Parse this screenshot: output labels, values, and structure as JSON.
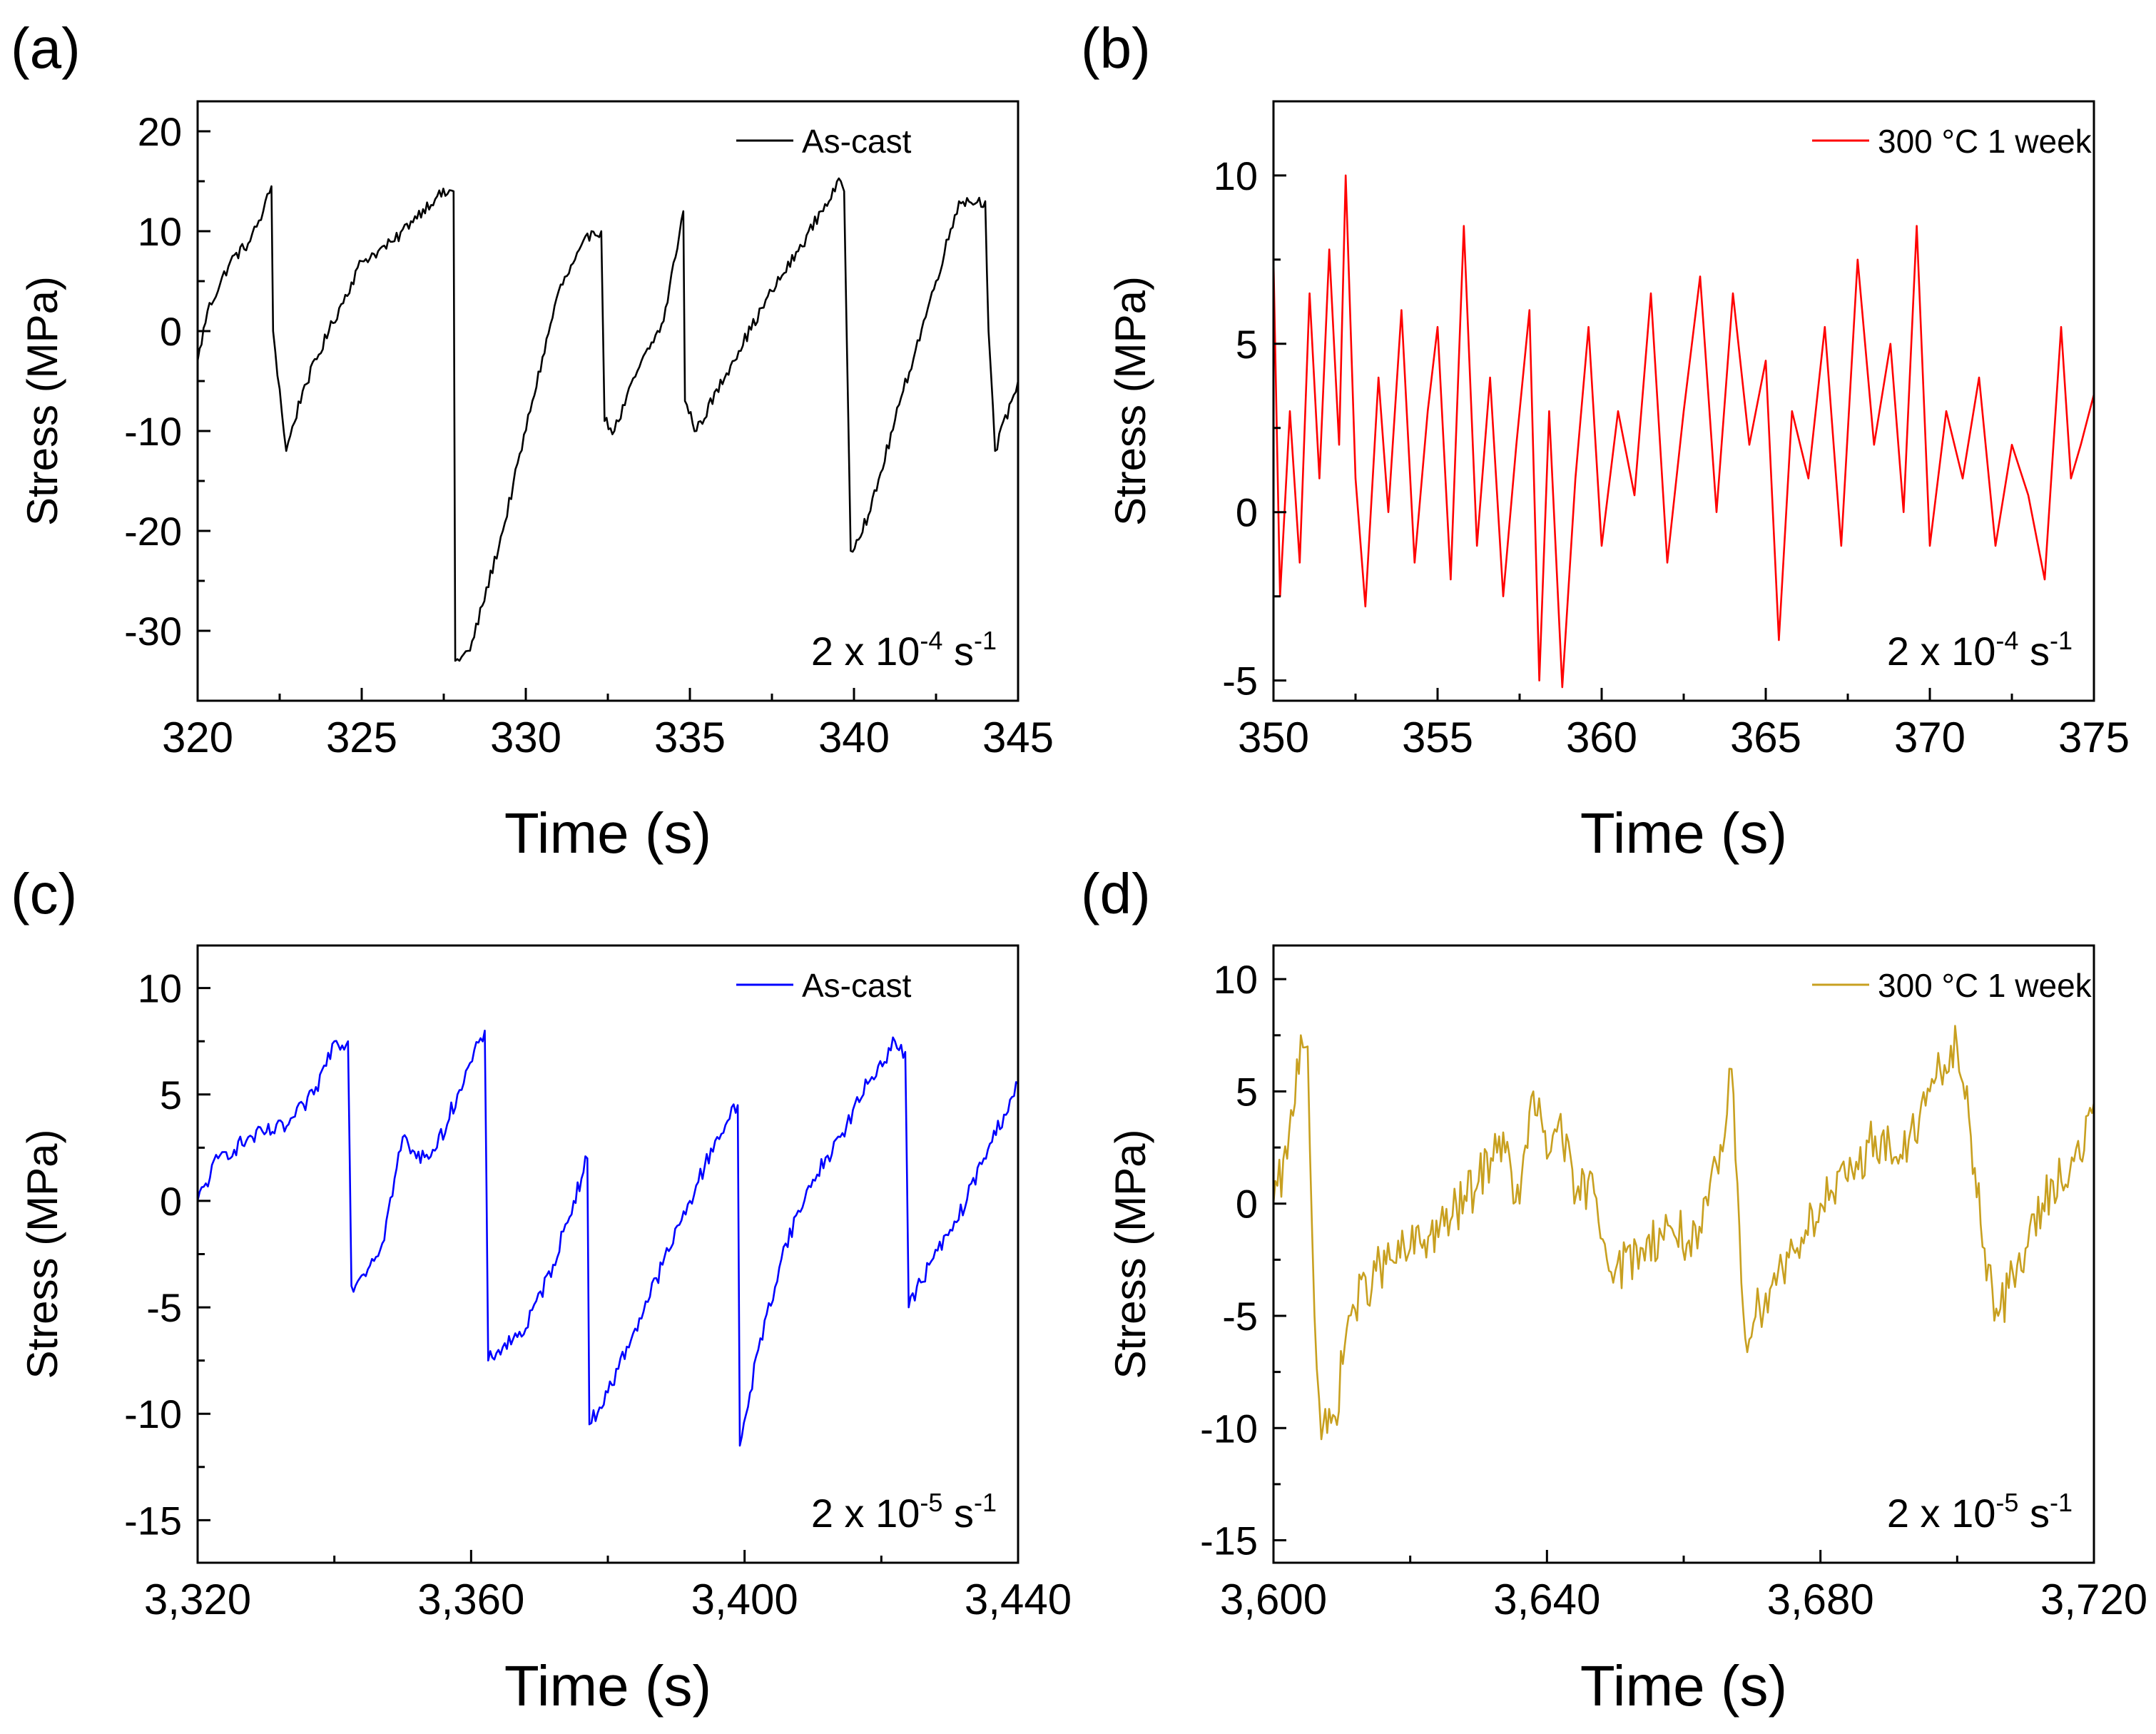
{
  "chart_data": [
    {
      "panel_label": "(a)",
      "type": "line",
      "xlabel": "Time (s)",
      "ylabel": "Stress (MPa)",
      "xlim": [
        320,
        345
      ],
      "ylim": [
        -37,
        23
      ],
      "xticks": [
        320,
        325,
        330,
        335,
        340,
        345
      ],
      "xtick_labels": [
        "320",
        "325",
        "330",
        "335",
        "340",
        "345"
      ],
      "yticks": [
        20,
        10,
        0,
        -10,
        -20,
        -30
      ],
      "ytick_labels": [
        "20",
        "10",
        "0",
        "-10",
        "-20",
        "-30"
      ],
      "legend": {
        "label": "As-cast",
        "position": "top-right"
      },
      "annotation": {
        "prefix": "2 x 10",
        "exponent": "-4",
        "unit": " s",
        "unit_exponent": "-1"
      },
      "series": [
        {
          "name": "As-cast",
          "color": "#000000",
          "noise": 0.6,
          "x": [
            320.0,
            320.3,
            321.0,
            321.6,
            322.0,
            322.25,
            322.3,
            322.7,
            323.2,
            324.0,
            325.0,
            325.5,
            326.0,
            326.5,
            327.3,
            327.8,
            327.85,
            328.3,
            329.3,
            330.2,
            331.0,
            332.0,
            332.3,
            332.4,
            332.7,
            333.4,
            334.2,
            334.8,
            334.85,
            335.2,
            336.3,
            337.5,
            338.3,
            339.0,
            339.6,
            339.7,
            339.9,
            340.5,
            341.5,
            342.5,
            343.2,
            344.0,
            344.1,
            344.3,
            344.8,
            345.0
          ],
          "y": [
            -3,
            2,
            7,
            9,
            12,
            14.5,
            0,
            -12,
            -6,
            0,
            7,
            8,
            9,
            11,
            13.5,
            14,
            -33,
            -32,
            -20,
            -7,
            4,
            10,
            10,
            -9,
            -10,
            -4,
            1,
            12,
            -7,
            -10,
            -3,
            4,
            8,
            12,
            15,
            14,
            -22,
            -18,
            -6,
            5,
            13,
            13,
            0,
            -12,
            -7,
            -5
          ]
        }
      ]
    },
    {
      "panel_label": "(b)",
      "type": "line",
      "xlabel": "Time (s)",
      "ylabel": "Stress (MPa)",
      "xlim": [
        350,
        375
      ],
      "ylim": [
        -5.6,
        12.2
      ],
      "xticks": [
        350,
        355,
        360,
        365,
        370,
        375
      ],
      "xtick_labels": [
        "350",
        "355",
        "360",
        "365",
        "370",
        "375"
      ],
      "yticks": [
        10,
        5,
        0,
        -5
      ],
      "ytick_labels": [
        "10",
        "5",
        "0",
        "-5"
      ],
      "legend": {
        "label": "300 °C 1 week",
        "position": "top-right"
      },
      "annotation": {
        "prefix": "2 x 10",
        "exponent": "-4",
        "unit": " s",
        "unit_exponent": "-1"
      },
      "series": [
        {
          "name": "300 °C 1 week",
          "color": "#ff0000",
          "noise": 0,
          "x": [
            350.0,
            350.2,
            350.5,
            350.8,
            351.1,
            351.4,
            351.7,
            352.0,
            352.2,
            352.5,
            352.8,
            353.2,
            353.5,
            353.9,
            354.3,
            354.7,
            355.0,
            355.4,
            355.8,
            356.2,
            356.6,
            357.0,
            357.4,
            357.8,
            358.1,
            358.4,
            358.8,
            359.2,
            359.6,
            360.0,
            360.5,
            361.0,
            361.5,
            362.0,
            362.5,
            363.0,
            363.5,
            364.0,
            364.5,
            365.0,
            365.4,
            365.8,
            366.3,
            366.8,
            367.3,
            367.8,
            368.3,
            368.8,
            369.2,
            369.6,
            370.0,
            370.5,
            371.0,
            371.5,
            372.0,
            372.5,
            373.0,
            373.5,
            374.0,
            374.3,
            374.6,
            375.0
          ],
          "y": [
            7.5,
            -2.5,
            3,
            -1.5,
            6.5,
            1,
            7.8,
            2,
            10,
            1,
            -2.8,
            4,
            0,
            6,
            -1.5,
            3,
            5.5,
            -2,
            8.5,
            -1,
            4,
            -2.5,
            2,
            6,
            -5,
            3,
            -5.2,
            1,
            5.5,
            -1,
            3,
            0.5,
            6.5,
            -1.5,
            3,
            7,
            0,
            6.5,
            2,
            4.5,
            -3.8,
            3,
            1,
            5.5,
            -1,
            7.5,
            2,
            5,
            0,
            8.5,
            -1,
            3,
            1,
            4,
            -1,
            2,
            0.5,
            -2,
            5.5,
            1,
            2,
            3.5
          ]
        }
      ]
    },
    {
      "panel_label": "(c)",
      "type": "line",
      "xlabel": "Time (s)",
      "ylabel": "Stress (MPa)",
      "xlim": [
        3320,
        3440
      ],
      "ylim": [
        -17,
        12
      ],
      "xticks": [
        3320,
        3360,
        3400,
        3440
      ],
      "xtick_labels": [
        "3,320",
        "3,360",
        "3,400",
        "3,440"
      ],
      "yticks": [
        10,
        5,
        0,
        -5,
        -10,
        -15
      ],
      "ytick_labels": [
        "10",
        "5",
        "0",
        "-5",
        "-10",
        "-15"
      ],
      "legend": {
        "label": "As-cast",
        "position": "top-right"
      },
      "annotation": {
        "prefix": "2 x 10",
        "exponent": "-5",
        "unit": " s",
        "unit_exponent": "-1"
      },
      "series": [
        {
          "name": "As-cast",
          "color": "#0000ff",
          "noise": 0.4,
          "x": [
            3320,
            3323,
            3328,
            3333,
            3337,
            3340,
            3342,
            3342.5,
            3344,
            3347,
            3350,
            3352,
            3355,
            3358,
            3362,
            3362.5,
            3364,
            3368,
            3372,
            3375,
            3377,
            3377.3,
            3380,
            3384,
            3388,
            3392,
            3396,
            3399,
            3399.3,
            3402,
            3406,
            3410,
            3414,
            3418,
            3422,
            3423.5,
            3424,
            3427,
            3431,
            3435,
            3440
          ],
          "y": [
            0,
            2,
            3,
            3.5,
            5,
            7.5,
            7.5,
            -4,
            -3.5,
            -2,
            3,
            2,
            2.5,
            5,
            8,
            -7.5,
            -7,
            -6,
            -3,
            0,
            2,
            -10.5,
            -9,
            -6,
            -3,
            0,
            3,
            4.5,
            -11.5,
            -7,
            -2,
            1,
            3,
            5.5,
            7.5,
            7,
            -5,
            -3,
            -1,
            2,
            5.5
          ]
        }
      ]
    },
    {
      "panel_label": "(d)",
      "type": "line",
      "xlabel": "Time (s)",
      "ylabel": "Stress (MPa)",
      "xlim": [
        3600,
        3720
      ],
      "ylim": [
        -16,
        11.5
      ],
      "xticks": [
        3600,
        3640,
        3680,
        3720
      ],
      "xtick_labels": [
        "3,600",
        "3,640",
        "3,680",
        "3,720"
      ],
      "yticks": [
        10,
        5,
        0,
        -5,
        -10,
        -15
      ],
      "ytick_labels": [
        "10",
        "5",
        "0",
        "-5",
        "-10",
        "-15"
      ],
      "legend": {
        "label": "300 °C 1 week",
        "position": "top-right"
      },
      "annotation": {
        "prefix": "2 x 10",
        "exponent": "-5",
        "unit": " s",
        "unit_exponent": "-1"
      },
      "series": [
        {
          "name": "300 °C 1 week",
          "color": "#c8a020",
          "noise": 1.1,
          "x": [
            3600,
            3602,
            3604,
            3605,
            3606,
            3607,
            3609,
            3611,
            3615,
            3620,
            3625,
            3630,
            3633,
            3636,
            3638,
            3640,
            3642,
            3644,
            3646,
            3650,
            3654,
            3658,
            3662,
            3666,
            3667,
            3669,
            3672,
            3676,
            3680,
            3684,
            3688,
            3692,
            3696,
            3700,
            3702,
            3704,
            3706,
            3710,
            3714,
            3718,
            3720
          ],
          "y": [
            0,
            2,
            7.5,
            7,
            -5,
            -10.5,
            -9.5,
            -5,
            -3,
            -2,
            -1,
            1,
            3,
            0,
            5,
            2,
            4,
            0,
            1,
            -3,
            -2,
            -1,
            -2,
            3,
            6,
            -6,
            -4,
            -2,
            0,
            1,
            3,
            2,
            5,
            7,
            3,
            -2,
            -5,
            -2,
            1,
            2,
            4.5
          ]
        }
      ]
    }
  ]
}
